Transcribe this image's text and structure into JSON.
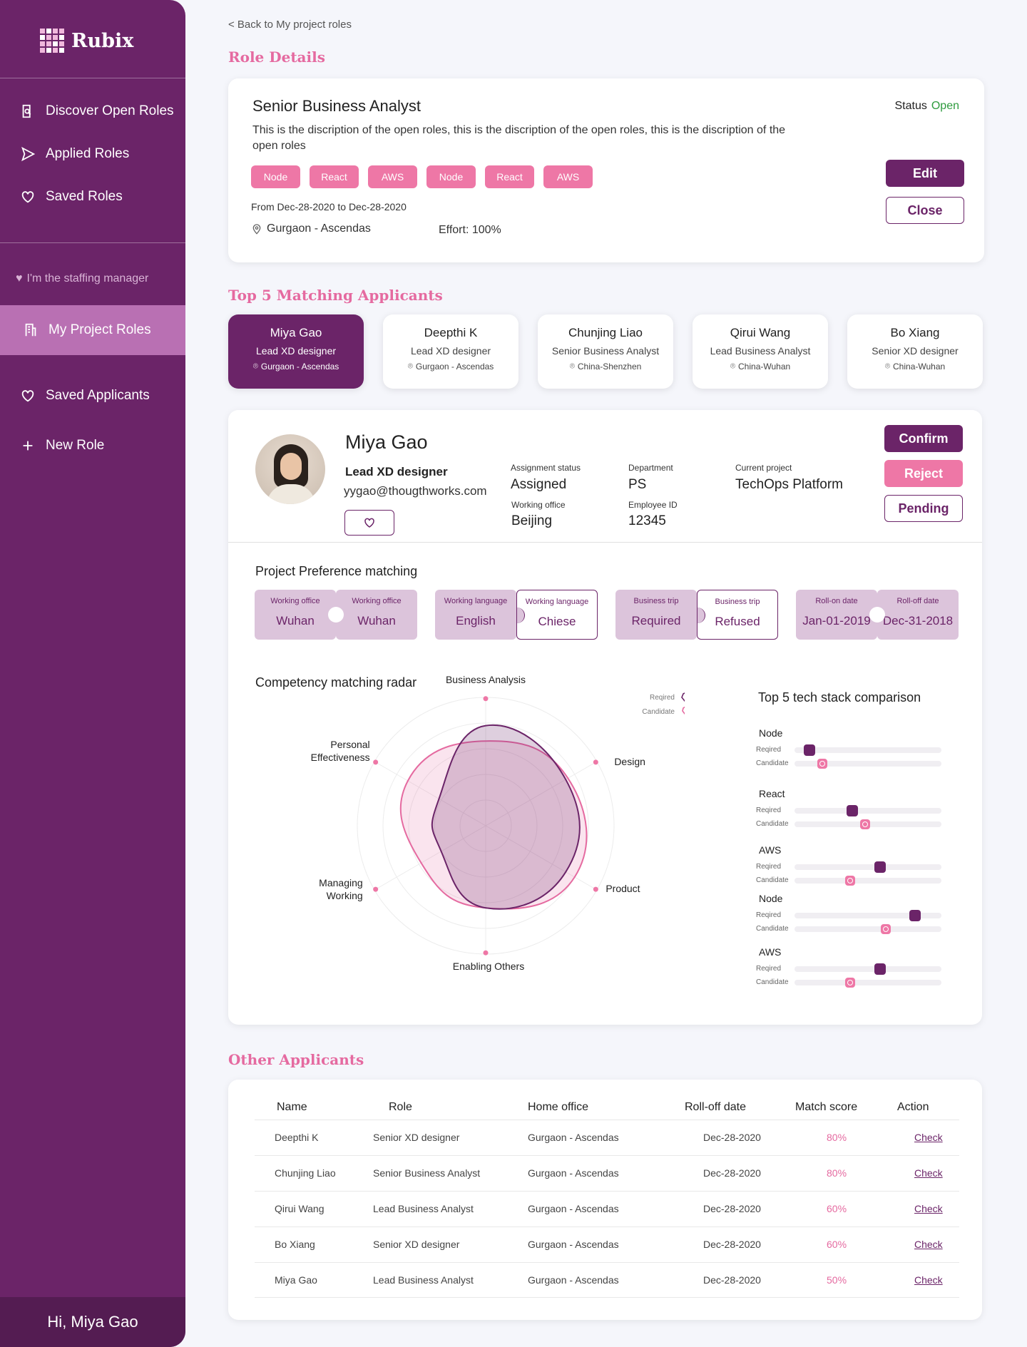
{
  "sidebar": {
    "logo_text": "Rubix",
    "nav": [
      {
        "label": "Discover Open Roles"
      },
      {
        "label": "Applied Roles"
      },
      {
        "label": "Saved Roles"
      }
    ],
    "manager_label": "I'm the staffing manager",
    "active_item": "My Project Roles",
    "nav2": [
      {
        "label": "Saved Applicants"
      },
      {
        "label": "New Role"
      }
    ],
    "greeting": "Hi, Miya Gao"
  },
  "back_link": "< Back to My project roles",
  "role_details": {
    "section_title": "Role Details",
    "title": "Senior Business Analyst",
    "description": "This is the discription of the open roles, this is the discription of the open roles, this is the discription of the open roles",
    "tags": [
      "Node",
      "React",
      "AWS",
      "Node",
      "React",
      "AWS"
    ],
    "dates": "From Dec-28-2020 to Dec-28-2020",
    "location": "Gurgaon - Ascendas",
    "effort": "Effort: 100%",
    "status_label": "Status",
    "status_value": "Open",
    "edit_label": "Edit",
    "close_label": "Close"
  },
  "top_applicants": {
    "section_title": "Top 5 Matching Applicants",
    "items": [
      {
        "name": "Miya Gao",
        "role": "Lead XD designer",
        "location": "Gurgaon - Ascendas"
      },
      {
        "name": "Deepthi K",
        "role": "Lead XD designer",
        "location": "Gurgaon - Ascendas"
      },
      {
        "name": "Chunjing Liao",
        "role": "Senior Business Analyst",
        "location": "China-Shenzhen"
      },
      {
        "name": "Qirui Wang",
        "role": "Lead Business Analyst",
        "location": "China-Wuhan"
      },
      {
        "name": "Bo Xiang",
        "role": "Senior XD designer",
        "location": "China-Wuhan"
      }
    ]
  },
  "applicant": {
    "name": "Miya Gao",
    "role": "Lead XD designer",
    "email": "yygao@thougthworks.com",
    "assignment_status_label": "Assignment status",
    "assignment_status": "Assigned",
    "department_label": "Department",
    "department": "PS",
    "current_project_label": "Current project",
    "current_project": "TechOps Platform",
    "working_office_label": "Working office",
    "working_office": "Beijing",
    "employee_id_label": "Employee ID",
    "employee_id": "12345",
    "confirm_label": "Confirm",
    "reject_label": "Reject",
    "pending_label": "Pending"
  },
  "preference": {
    "title": "Project Preference matching",
    "groups": [
      {
        "left_label": "Working office",
        "left_value": "Wuhan",
        "right_label": "Working office",
        "right_value": "Wuhan",
        "right_selected": false
      },
      {
        "left_label": "Working language",
        "left_value": "English",
        "right_label": "Working language",
        "right_value": "Chiese",
        "right_selected": true
      },
      {
        "left_label": "Business trip",
        "left_value": "Required",
        "right_label": "Business trip",
        "right_value": "Refused",
        "right_selected": true
      },
      {
        "left_label": "Roll-on date",
        "left_value": "Jan-01-2019",
        "right_label": "Roll-off date",
        "right_value": "Dec-31-2018",
        "right_selected": false
      }
    ]
  },
  "radar": {
    "title": "Competency  matching radar",
    "legend_required": "Reqired",
    "legend_candidate": "Candidate",
    "axes": [
      "Business Analysis",
      "Design",
      "Product",
      "Enabling Others",
      "Managing Working",
      "Personal Effectiveness"
    ],
    "axes_lines": [
      [
        "Business Analysis"
      ],
      [
        "Design"
      ],
      [
        "Product"
      ],
      [
        "Enabling Others"
      ],
      [
        "Managing",
        "Working"
      ],
      [
        "Personal",
        "Effectiveness"
      ]
    ],
    "required": [
      0.78,
      0.72,
      0.72,
      0.64,
      0.4,
      0.42
    ],
    "candidate": [
      0.66,
      0.74,
      0.8,
      0.64,
      0.58,
      0.7
    ],
    "colors": {
      "required": "#6b2468",
      "candidate": "#e56aa0"
    }
  },
  "tech": {
    "title": "Top 5 tech stack comparison",
    "required_label": "Reqired",
    "candidate_label": "Candidate",
    "items": [
      {
        "name": "Node",
        "required": 0.1,
        "candidate": 0.19
      },
      {
        "name": "React",
        "required": 0.39,
        "candidate": 0.48
      },
      {
        "name": "AWS",
        "required": 0.58,
        "candidate": 0.38
      },
      {
        "name": "Node",
        "required": 0.82,
        "candidate": 0.62
      },
      {
        "name": "AWS",
        "required": 0.58,
        "candidate": 0.38
      }
    ]
  },
  "other_applicants": {
    "section_title": "Other Applicants",
    "headers": [
      "Name",
      "Role",
      "Home office",
      "Roll-off date",
      "Match score",
      "Action"
    ],
    "rows": [
      {
        "name": "Deepthi K",
        "role": "Senior XD designer",
        "office": "Gurgaon - Ascendas",
        "date": "Dec-28-2020",
        "score": "80%",
        "action": "Check"
      },
      {
        "name": "Chunjing Liao",
        "role": "Senior Business Analyst",
        "office": "Gurgaon - Ascendas",
        "date": "Dec-28-2020",
        "score": "80%",
        "action": "Check"
      },
      {
        "name": "Qirui Wang",
        "role": "Lead Business Analyst",
        "office": "Gurgaon - Ascendas",
        "date": "Dec-28-2020",
        "score": "60%",
        "action": "Check"
      },
      {
        "name": "Bo Xiang",
        "role": "Senior XD designer",
        "office": "Gurgaon - Ascendas",
        "date": "Dec-28-2020",
        "score": "60%",
        "action": "Check"
      },
      {
        "name": "Miya Gao",
        "role": "Lead Business Analyst",
        "office": "Gurgaon - Ascendas",
        "date": "Dec-28-2020",
        "score": "50%",
        "action": "Check"
      }
    ]
  }
}
